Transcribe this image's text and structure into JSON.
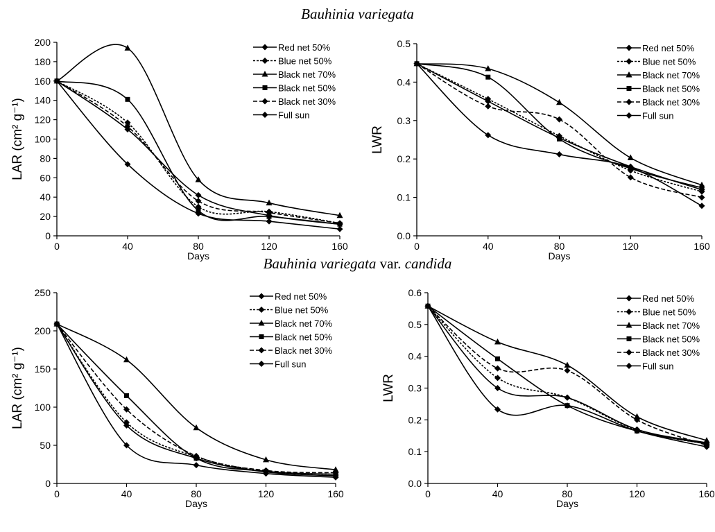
{
  "sections": [
    {
      "species": "Bauhinia variegata",
      "suffix": "",
      "cultivar": ""
    },
    {
      "species": "Bauhinia variegata",
      "suffix": " var. ",
      "cultivar": "candida"
    }
  ],
  "chart_data": [
    {
      "type": "line",
      "section": "Bauhinia variegata",
      "xlabel": "Days",
      "ylabel": "LAR (cm² g⁻¹)",
      "x": [
        0,
        40,
        80,
        120,
        160
      ],
      "xticks": [
        "0",
        "40",
        "80",
        "120",
        "160"
      ],
      "ylim": [
        0,
        200
      ],
      "yticks": [
        "0",
        "20",
        "40",
        "60",
        "80",
        "100",
        "120",
        "140",
        "160",
        "180",
        "200"
      ],
      "legend_position": "top-right",
      "series": [
        {
          "name": "Red net 50%",
          "values": [
            160,
            110,
            42,
            21,
            12
          ],
          "marker": "diamond",
          "dashed": false
        },
        {
          "name": "Blue net 50%",
          "values": [
            160,
            117,
            30,
            25,
            13
          ],
          "marker": "diamond",
          "dashed": true
        },
        {
          "name": "Black net 70%",
          "values": [
            160,
            194,
            58,
            34,
            21
          ],
          "marker": "triangle",
          "dashed": false
        },
        {
          "name": "Black net 50%",
          "values": [
            160,
            141,
            26,
            20,
            12
          ],
          "marker": "square",
          "dashed": false
        },
        {
          "name": "Black net 30%",
          "values": [
            160,
            113,
            36,
            24,
            13
          ],
          "marker": "diamond",
          "dashed": true
        },
        {
          "name": "Full sun",
          "values": [
            160,
            74,
            23,
            15,
            7
          ],
          "marker": "diamond",
          "dashed": false
        }
      ]
    },
    {
      "type": "line",
      "section": "Bauhinia variegata",
      "xlabel": "Days",
      "ylabel": "LWR",
      "x": [
        0,
        40,
        80,
        120,
        160
      ],
      "xticks": [
        "0",
        "40",
        "80",
        "120",
        "160"
      ],
      "ylim": [
        0,
        0.5
      ],
      "yticks": [
        "0.0",
        "0.1",
        "0.2",
        "0.3",
        "0.4",
        "0.5"
      ],
      "legend_position": "top-right",
      "series": [
        {
          "name": "Red net 50%",
          "values": [
            0.448,
            0.35,
            0.255,
            0.18,
            0.12
          ],
          "marker": "diamond",
          "dashed": false
        },
        {
          "name": "Blue net 50%",
          "values": [
            0.448,
            0.356,
            0.26,
            0.17,
            0.115
          ],
          "marker": "diamond",
          "dashed": true
        },
        {
          "name": "Black net 70%",
          "values": [
            0.448,
            0.435,
            0.347,
            0.203,
            0.132
          ],
          "marker": "triangle",
          "dashed": false
        },
        {
          "name": "Black net 50%",
          "values": [
            0.448,
            0.413,
            0.252,
            0.175,
            0.125
          ],
          "marker": "square",
          "dashed": false
        },
        {
          "name": "Black net 30%",
          "values": [
            0.448,
            0.337,
            0.303,
            0.152,
            0.1
          ],
          "marker": "diamond",
          "dashed": true
        },
        {
          "name": "Full sun",
          "values": [
            0.448,
            0.262,
            0.212,
            0.178,
            0.078
          ],
          "marker": "diamond",
          "dashed": false
        }
      ]
    },
    {
      "type": "line",
      "section": "Bauhinia variegata var. candida",
      "xlabel": "Days",
      "ylabel": "LAR (cm² g⁻¹)",
      "x": [
        0,
        40,
        80,
        120,
        160
      ],
      "xticks": [
        "0",
        "40",
        "80",
        "120",
        "160"
      ],
      "ylim": [
        0,
        250
      ],
      "yticks": [
        "0",
        "50",
        "100",
        "150",
        "200",
        "250"
      ],
      "legend_position": "top-right",
      "series": [
        {
          "name": "Red net 50%",
          "values": [
            209,
            76,
            33,
            15,
            10
          ],
          "marker": "diamond",
          "dashed": false
        },
        {
          "name": "Blue net 50%",
          "values": [
            209,
            80,
            35,
            16,
            12
          ],
          "marker": "diamond",
          "dashed": true
        },
        {
          "name": "Black net 70%",
          "values": [
            209,
            162,
            73,
            31,
            18
          ],
          "marker": "triangle",
          "dashed": false
        },
        {
          "name": "Black net 50%",
          "values": [
            209,
            115,
            33,
            16,
            12
          ],
          "marker": "square",
          "dashed": false
        },
        {
          "name": "Black net 30%",
          "values": [
            209,
            97,
            36,
            17,
            14
          ],
          "marker": "diamond",
          "dashed": true
        },
        {
          "name": "Full sun",
          "values": [
            209,
            50,
            24,
            13,
            8
          ],
          "marker": "diamond",
          "dashed": false
        }
      ]
    },
    {
      "type": "line",
      "section": "Bauhinia variegata var. candida",
      "xlabel": "Days",
      "ylabel": "LWR",
      "x": [
        0,
        40,
        80,
        120,
        160
      ],
      "xticks": [
        "0",
        "40",
        "80",
        "120",
        "160"
      ],
      "ylim": [
        0,
        0.6
      ],
      "yticks": [
        "0.0",
        "0.1",
        "0.2",
        "0.3",
        "0.4",
        "0.5",
        "0.6"
      ],
      "legend_position": "top-right",
      "series": [
        {
          "name": "Red net 50%",
          "values": [
            0.558,
            0.3,
            0.27,
            0.17,
            0.128
          ],
          "marker": "diamond",
          "dashed": false
        },
        {
          "name": "Blue net 50%",
          "values": [
            0.558,
            0.332,
            0.27,
            0.168,
            0.124
          ],
          "marker": "diamond",
          "dashed": true
        },
        {
          "name": "Black net 70%",
          "values": [
            0.558,
            0.445,
            0.372,
            0.21,
            0.135
          ],
          "marker": "triangle",
          "dashed": false
        },
        {
          "name": "Black net 50%",
          "values": [
            0.558,
            0.392,
            0.245,
            0.165,
            0.125
          ],
          "marker": "square",
          "dashed": false
        },
        {
          "name": "Black net 30%",
          "values": [
            0.558,
            0.362,
            0.355,
            0.2,
            0.12
          ],
          "marker": "diamond",
          "dashed": true
        },
        {
          "name": "Full sun",
          "values": [
            0.558,
            0.233,
            0.245,
            0.165,
            0.115
          ],
          "marker": "diamond",
          "dashed": false
        }
      ]
    }
  ]
}
